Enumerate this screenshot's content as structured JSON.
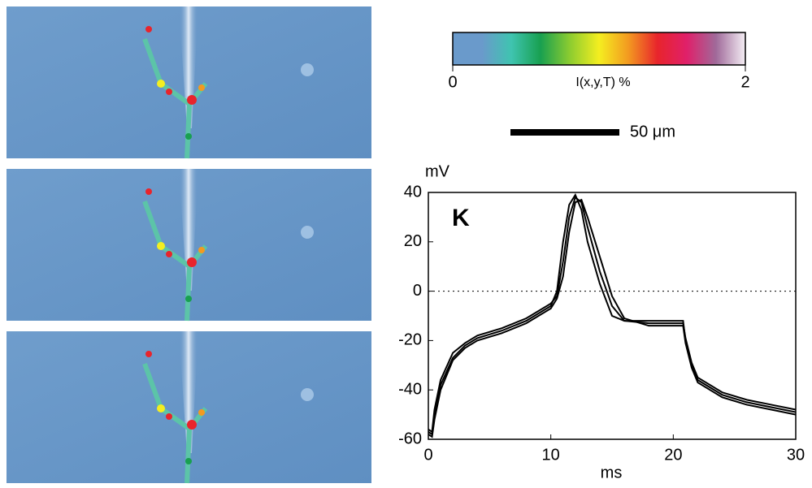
{
  "chart_data": {
    "type": "line",
    "panel_label": "K",
    "y_label": "mV",
    "x_label": "ms",
    "x": [
      0,
      0.3,
      0.5,
      1,
      2,
      3,
      4,
      6,
      8,
      10,
      10.5,
      11,
      11.5,
      12,
      12.5,
      13,
      14,
      15,
      16,
      18,
      20,
      20.8,
      21,
      21.5,
      22,
      24,
      26,
      28,
      30
    ],
    "series": [
      {
        "color": "#000000",
        "values": [
          -57,
          -58,
          -50,
          -38,
          -27,
          -22,
          -19,
          -16,
          -12,
          -6,
          0,
          20,
          35,
          39,
          33,
          20,
          3,
          -10,
          -12,
          -12,
          -12,
          -12,
          -20,
          -30,
          -36,
          -42,
          -45,
          -47,
          -49
        ]
      },
      {
        "color": "#000000",
        "values": [
          -56,
          -57,
          -48,
          -36,
          -25,
          -21,
          -18,
          -15,
          -11,
          -5,
          -2,
          12,
          30,
          38,
          36,
          26,
          8,
          -6,
          -12,
          -13,
          -13,
          -13,
          -19,
          -29,
          -35,
          -41,
          -44,
          -46,
          -48
        ]
      },
      {
        "color": "#000000",
        "values": [
          -58,
          -59,
          -52,
          -40,
          -28,
          -23,
          -20,
          -17,
          -13,
          -7,
          -3,
          6,
          24,
          36,
          37,
          30,
          14,
          -2,
          -11,
          -14,
          -14,
          -14,
          -21,
          -31,
          -37,
          -43,
          -46,
          -48,
          -50
        ]
      }
    ],
    "xlim": [
      0,
      30
    ],
    "xticks": [
      0,
      10,
      20,
      30
    ],
    "ylim": [
      -60,
      40
    ],
    "yticks": [
      -60,
      -40,
      -20,
      0,
      20,
      40
    ],
    "reference_line": 0
  },
  "colorbar": {
    "ticks": [
      0,
      2
    ],
    "label": "I(x,y,T) %",
    "colors": [
      "#6a9acb",
      "#6a9acb",
      "#3fc4b0",
      "#18a050",
      "#8ccc30",
      "#f4ee20",
      "#f39a20",
      "#e8242c",
      "#e0206a",
      "#a06a9a",
      "#f4eef4"
    ]
  },
  "scale_bar": {
    "label": "50 μm"
  }
}
